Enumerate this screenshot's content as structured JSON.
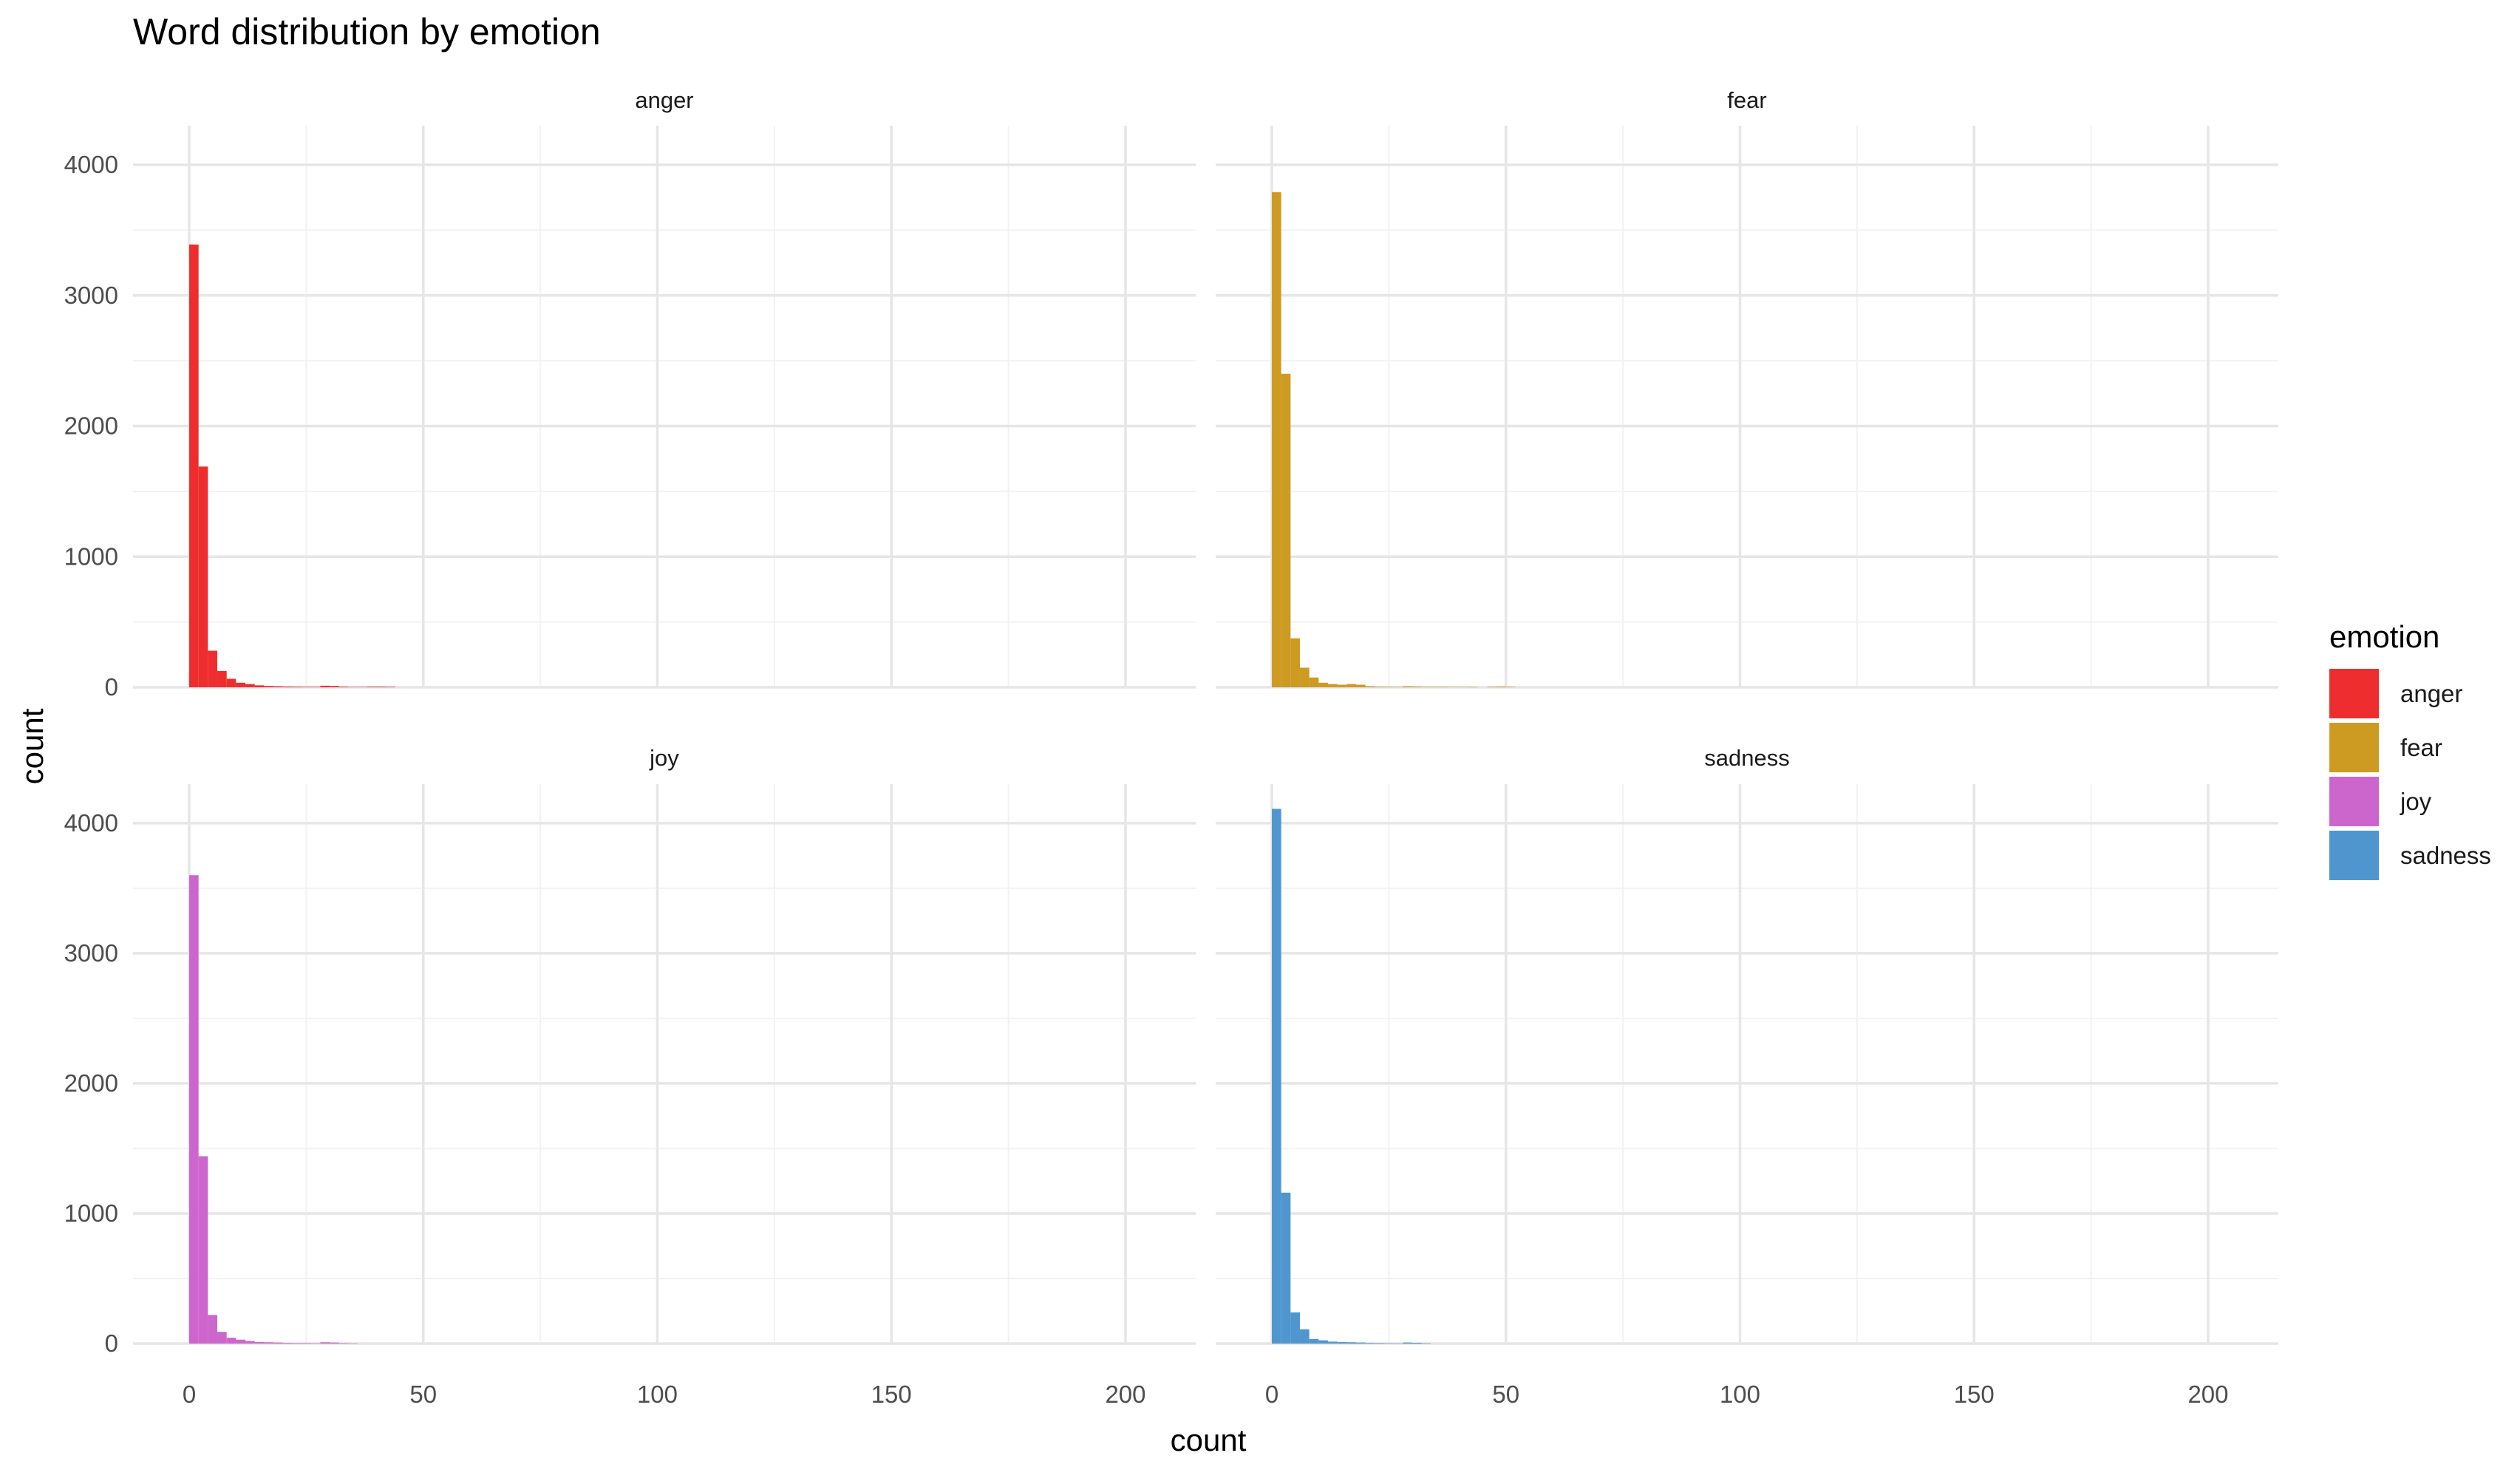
{
  "chart_data": {
    "type": "bar",
    "subtype": "faceted histogram",
    "title": "Word distribution by emotion",
    "xlabel": "count",
    "ylabel": "count",
    "xlim": [
      -12,
      215
    ],
    "ylim": [
      0,
      4300
    ],
    "x_ticks": [
      0,
      50,
      100,
      150,
      200
    ],
    "y_ticks": [
      0,
      1000,
      2000,
      3000,
      4000
    ],
    "grid": true,
    "legend": {
      "title": "emotion",
      "position": "right",
      "entries": [
        {
          "label": "anger",
          "color": "#EE2E2E"
        },
        {
          "label": "fear",
          "color": "#CD9A22"
        },
        {
          "label": "joy",
          "color": "#CC66CC"
        },
        {
          "label": "sadness",
          "color": "#4F96CE"
        }
      ]
    },
    "bin_width": 2,
    "panels": [
      {
        "strip": "anger",
        "color": "#EE2E2E",
        "bins": [
          [
            1,
            3390
          ],
          [
            3,
            1690
          ],
          [
            5,
            280
          ],
          [
            7,
            125
          ],
          [
            9,
            65
          ],
          [
            11,
            35
          ],
          [
            13,
            25
          ],
          [
            15,
            15
          ],
          [
            17,
            10
          ],
          [
            19,
            8
          ],
          [
            21,
            6
          ],
          [
            23,
            5
          ],
          [
            25,
            4
          ],
          [
            27,
            4
          ],
          [
            29,
            12
          ],
          [
            31,
            10
          ],
          [
            33,
            5
          ],
          [
            35,
            3
          ],
          [
            37,
            3
          ],
          [
            39,
            5
          ],
          [
            41,
            5
          ],
          [
            43,
            4
          ]
        ]
      },
      {
        "strip": "fear",
        "color": "#CD9A22",
        "bins": [
          [
            1,
            3790
          ],
          [
            3,
            2400
          ],
          [
            5,
            375
          ],
          [
            7,
            150
          ],
          [
            9,
            75
          ],
          [
            11,
            35
          ],
          [
            13,
            25
          ],
          [
            15,
            20
          ],
          [
            17,
            25
          ],
          [
            19,
            20
          ],
          [
            21,
            8
          ],
          [
            23,
            5
          ],
          [
            25,
            4
          ],
          [
            27,
            3
          ],
          [
            29,
            8
          ],
          [
            31,
            6
          ],
          [
            33,
            4
          ],
          [
            35,
            4
          ],
          [
            37,
            4
          ],
          [
            39,
            3
          ],
          [
            41,
            3
          ],
          [
            43,
            2
          ],
          [
            47,
            4
          ],
          [
            49,
            6
          ],
          [
            51,
            4
          ]
        ]
      },
      {
        "strip": "joy",
        "color": "#CC66CC",
        "bins": [
          [
            1,
            3600
          ],
          [
            3,
            1440
          ],
          [
            5,
            220
          ],
          [
            7,
            90
          ],
          [
            9,
            45
          ],
          [
            11,
            30
          ],
          [
            13,
            20
          ],
          [
            15,
            12
          ],
          [
            17,
            10
          ],
          [
            19,
            8
          ],
          [
            21,
            5
          ],
          [
            23,
            4
          ],
          [
            25,
            4
          ],
          [
            27,
            3
          ],
          [
            29,
            10
          ],
          [
            31,
            8
          ],
          [
            33,
            4
          ],
          [
            35,
            2
          ]
        ]
      },
      {
        "strip": "sadness",
        "color": "#4F96CE",
        "bins": [
          [
            1,
            4110
          ],
          [
            3,
            1160
          ],
          [
            5,
            240
          ],
          [
            7,
            110
          ],
          [
            9,
            35
          ],
          [
            11,
            25
          ],
          [
            13,
            15
          ],
          [
            15,
            12
          ],
          [
            17,
            10
          ],
          [
            19,
            8
          ],
          [
            21,
            5
          ],
          [
            23,
            4
          ],
          [
            25,
            3
          ],
          [
            27,
            2
          ],
          [
            29,
            8
          ],
          [
            31,
            6
          ],
          [
            33,
            3
          ]
        ]
      }
    ]
  }
}
